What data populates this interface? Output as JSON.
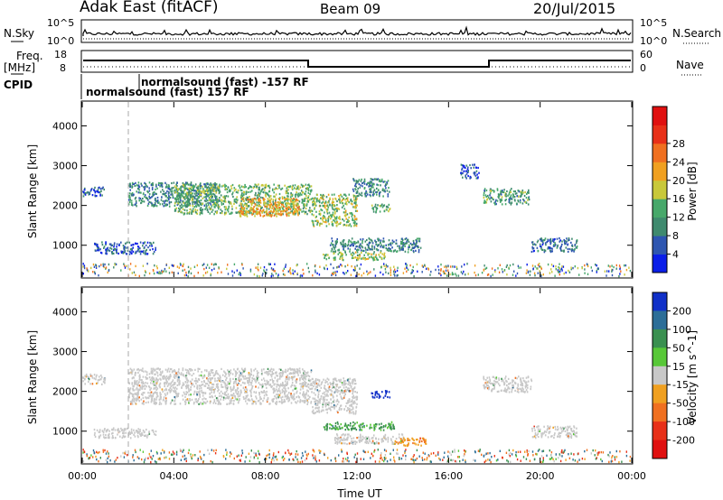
{
  "header": {
    "title": "Adak East (fitACF)",
    "beam": "Beam 09",
    "date": "20/Jul/2015"
  },
  "top_panels": {
    "nsky_label": "N.Sky",
    "nsearch_label": "N.Search",
    "nsky_ticks": [
      "10^5",
      "10^0"
    ],
    "nsearch_ticks": [
      "10^5",
      "10^0"
    ],
    "freq_label": "Freq.",
    "freq_unit": "[MHz]",
    "freq_ticks": [
      "18",
      "8"
    ],
    "nave_label": "Nave",
    "nave_ticks": [
      "60",
      "0"
    ],
    "cpid_label": "CPID",
    "cpid_text_1": "normalsound (fast) -157 RF",
    "cpid_text_2": "normalsound (fast) 157 RF"
  },
  "chart_data": [
    {
      "type": "heatmap",
      "name": "power",
      "ylabel": "Slant Range [km]",
      "yticks": [
        1000,
        2000,
        3000,
        4000
      ],
      "ylim": [
        200,
        4600
      ],
      "xlim_hours": [
        0,
        24
      ],
      "colorbar": {
        "label": "Power [dB]",
        "ticks": [
          "4",
          "8",
          "12",
          "16",
          "20",
          "24",
          "28"
        ],
        "colors": [
          "#0a1ee8",
          "#2e56b0",
          "#3f8a6e",
          "#47a86a",
          "#c8c83a",
          "#f0a020",
          "#f07020",
          "#e83018",
          "#e01010"
        ]
      },
      "regions": [
        {
          "t0": 0.0,
          "t1": 1.0,
          "r0": 2250,
          "r1": 2480,
          "v": 6
        },
        {
          "t0": 2.0,
          "t1": 6.0,
          "r0": 2000,
          "r1": 2600,
          "v": 10
        },
        {
          "t0": 4.0,
          "t1": 10.0,
          "r0": 1800,
          "r1": 2550,
          "v": 14
        },
        {
          "t0": 6.8,
          "t1": 9.5,
          "r0": 1750,
          "r1": 2200,
          "v": 22
        },
        {
          "t0": 10.0,
          "t1": 12.0,
          "r0": 1500,
          "r1": 2300,
          "v": 16
        },
        {
          "t0": 11.8,
          "t1": 13.4,
          "r0": 2250,
          "r1": 2700,
          "v": 10
        },
        {
          "t0": 12.6,
          "t1": 13.5,
          "r0": 1850,
          "r1": 2050,
          "v": 14
        },
        {
          "t0": 10.8,
          "t1": 14.8,
          "r0": 850,
          "r1": 1200,
          "v": 10
        },
        {
          "t0": 10.5,
          "t1": 13.2,
          "r0": 650,
          "r1": 850,
          "v": 16
        },
        {
          "t0": 16.5,
          "t1": 17.3,
          "r0": 2700,
          "r1": 3050,
          "v": 6
        },
        {
          "t0": 17.5,
          "t1": 19.5,
          "r0": 2050,
          "r1": 2450,
          "v": 12
        },
        {
          "t0": 19.6,
          "t1": 21.6,
          "r0": 850,
          "r1": 1200,
          "v": 8
        },
        {
          "t0": 0.5,
          "t1": 3.2,
          "r0": 800,
          "r1": 1100,
          "v": 6
        }
      ]
    },
    {
      "type": "heatmap",
      "name": "velocity",
      "ylabel": "Slant Range [km]",
      "yticks": [
        1000,
        2000,
        3000,
        4000
      ],
      "ylim": [
        200,
        4600
      ],
      "xlabel": "Time UT",
      "xticks": [
        "00:00",
        "04:00",
        "08:00",
        "12:00",
        "16:00",
        "20:00",
        "00:00"
      ],
      "xlim_hours": [
        0,
        24
      ],
      "colorbar": {
        "label": "Velocity [m s^-1]",
        "ticks": [
          "200",
          "100",
          "50",
          "15",
          "-15",
          "-50",
          "-100",
          "-200"
        ],
        "colors": [
          "#1030c8",
          "#2c6e98",
          "#3a9050",
          "#58c838",
          "#c8c8c8",
          "#f0a020",
          "#f07020",
          "#e83018",
          "#e01010"
        ]
      },
      "regions": [
        {
          "t0": 0.0,
          "t1": 1.0,
          "r0": 2200,
          "r1": 2450,
          "v": 0
        },
        {
          "t0": 2.0,
          "t1": 10.0,
          "r0": 1700,
          "r1": 2600,
          "v": 0
        },
        {
          "t0": 10.0,
          "t1": 12.0,
          "r0": 1450,
          "r1": 2350,
          "v": 0
        },
        {
          "t0": 12.6,
          "t1": 13.4,
          "r0": 1850,
          "r1": 2050,
          "v": 220
        },
        {
          "t0": 10.5,
          "t1": 13.6,
          "r0": 1050,
          "r1": 1250,
          "v": 35
        },
        {
          "t0": 11.0,
          "t1": 14.0,
          "r0": 700,
          "r1": 950,
          "v": 0
        },
        {
          "t0": 13.6,
          "t1": 15.0,
          "r0": 650,
          "r1": 850,
          "v": -45
        },
        {
          "t0": 17.5,
          "t1": 19.6,
          "r0": 2000,
          "r1": 2400,
          "v": 0
        },
        {
          "t0": 19.6,
          "t1": 21.6,
          "r0": 850,
          "r1": 1150,
          "v": 0
        },
        {
          "t0": 0.5,
          "t1": 3.2,
          "r0": 850,
          "r1": 1100,
          "v": 0
        }
      ]
    }
  ]
}
